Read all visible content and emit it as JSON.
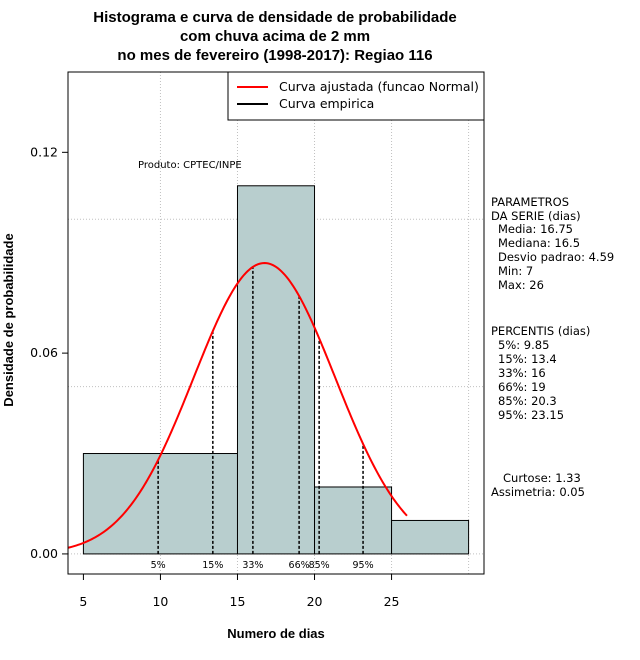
{
  "chart_data": {
    "type": "bar",
    "title_lines": [
      "Histograma e curva de densidade de probabilidade",
      "com chuva acima de 2 mm",
      "no mes de fevereiro (1998-2017): Regiao 116"
    ],
    "xlabel": "Numero de dias",
    "ylabel": "Densidade de probabilidade",
    "xlim": [
      4,
      31
    ],
    "ylim": [
      -0.006,
      0.144
    ],
    "x_ticks": [
      5,
      10,
      15,
      20,
      25
    ],
    "y_ticks": [
      0.0,
      0.06,
      0.12
    ],
    "y_tick_labels": [
      "0.00",
      "0.06",
      "0.12"
    ],
    "grid": true,
    "grid_x": [
      10,
      15,
      20,
      25,
      30
    ],
    "grid_y": [
      0.0,
      0.05,
      0.1
    ],
    "bins": [
      {
        "from": 5,
        "to": 15,
        "density": 0.03
      },
      {
        "from": 15,
        "to": 20,
        "density": 0.11
      },
      {
        "from": 20,
        "to": 25,
        "density": 0.02
      },
      {
        "from": 25,
        "to": 30,
        "density": 0.01
      }
    ],
    "normal_curve": {
      "mean": 16.75,
      "sd": 4.59,
      "x_from": 4,
      "x_to": 26
    },
    "percentile_lines": [
      {
        "label": "5%",
        "x": 9.85
      },
      {
        "label": "15%",
        "x": 13.4
      },
      {
        "label": "33%",
        "x": 16
      },
      {
        "label": "66%",
        "x": 19
      },
      {
        "label": "85%",
        "x": 20.3
      },
      {
        "label": "95%",
        "x": 23.15
      }
    ],
    "legend": {
      "placement": "top-right",
      "entries": [
        {
          "label": "Curva ajustada (funcao Normal)",
          "color": "#ff0000"
        },
        {
          "label": "Curva empirica",
          "color": "#000000"
        }
      ]
    },
    "annotation": "Produto: CPTEC/INPE",
    "bar_color": "#b8cece",
    "curve_color": "#ff0000"
  },
  "side_panel": {
    "params_title": "PARAMETROS\nDA SERIE (dias)",
    "params": [
      "Media: 16.75",
      "Mediana: 16.5",
      "Desvio padrao: 4.59",
      "Min: 7",
      "Max: 26"
    ],
    "percentis_title": "PERCENTIS (dias)",
    "percentis": [
      "5%: 9.85",
      "15%: 13.4",
      "33%: 16",
      "66%: 19",
      "85%: 20.3",
      "95%: 23.15"
    ],
    "curtose": "Curtose: 1.33",
    "assimetria": "Assimetria: 0.05"
  }
}
